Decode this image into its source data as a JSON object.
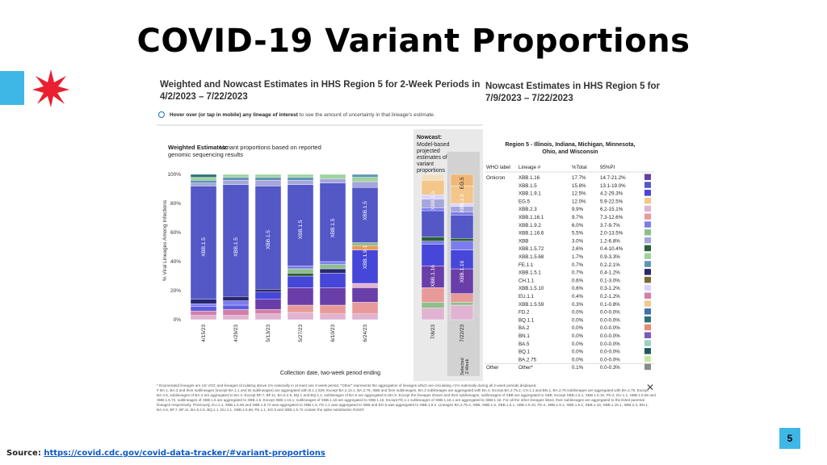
{
  "slide": {
    "title": "COVID-19 Variant Proportions",
    "left_heading": "Weighted and Nowcast Estimates in HHS Region 5 for 2-Week Periods in 4/2/2023 – 7/22/2023",
    "right_heading": "Nowcast Estimates in HHS Region 5 for 7/9/2023 – 7/22/2023",
    "hover_bold": "Hover over (or tap in mobile) any lineage of interest",
    "hover_rest": " to see the amount of uncertainty in that lineage's estimate.",
    "source_label": "Source: ",
    "source_link": "https://covid.cdc.gov/covid-data-tracker/#variant-proportions",
    "page_number": "5",
    "brand_colors": {
      "accent": "#3fb7e6",
      "star": "#e8202f"
    },
    "icons": {
      "star": "star-icon",
      "hover": "info-icon",
      "close": "close-icon"
    }
  },
  "chart_data": {
    "type": "bar",
    "stacked": true,
    "title": "Weighted Estimates:",
    "subtitle": "Variant proportions based on reported genomic sequencing results",
    "nowcast_title": "Nowcast:",
    "nowcast_subtitle": "Model-based projected estimates of variant proportions",
    "xlabel": "Collection date, two-week period ending",
    "ylabel": "% Viral Lineages Among Infections",
    "yticks": [
      "100%",
      "80%",
      "60%",
      "40%",
      "20%",
      "0%"
    ],
    "ylim": [
      0,
      100
    ],
    "grid": false,
    "selected_label": "Selected 2-Week",
    "bars": [
      {
        "date": "4/15/23",
        "group": "weighted",
        "label": "XBB.1.5",
        "label_y": 50,
        "segments": [
          {
            "value": 3,
            "color": "#e0b3d2"
          },
          {
            "value": 3,
            "color": "#d27fa8"
          },
          {
            "value": 3,
            "color": "#5c5ce0"
          },
          {
            "value": 2,
            "color": "#7c7cf0"
          },
          {
            "value": 3,
            "color": "#272870"
          },
          {
            "value": 78,
            "color": "#5457c6"
          },
          {
            "value": 2,
            "color": "#a6a6dc"
          },
          {
            "value": 2,
            "color": "#5e96b4"
          },
          {
            "value": 2,
            "color": "#9fd39c"
          },
          {
            "value": 2,
            "color": "#2c6f7a"
          }
        ]
      },
      {
        "date": "4/29/23",
        "group": "weighted",
        "label": "XBB.1.5",
        "label_y": 50,
        "segments": [
          {
            "value": 3,
            "color": "#e0b3d2"
          },
          {
            "value": 4,
            "color": "#d27fa8"
          },
          {
            "value": 3,
            "color": "#5c5ce0"
          },
          {
            "value": 3,
            "color": "#7c7cf0"
          },
          {
            "value": 3,
            "color": "#272870"
          },
          {
            "value": 77,
            "color": "#5457c6"
          },
          {
            "value": 3,
            "color": "#a6a6dc"
          },
          {
            "value": 2,
            "color": "#5e96b4"
          },
          {
            "value": 2,
            "color": "#9fd39c"
          }
        ]
      },
      {
        "date": "5/13/23",
        "group": "weighted",
        "label": "XBB.1.5",
        "label_y": 55,
        "segments": [
          {
            "value": 4,
            "color": "#e0b3d2"
          },
          {
            "value": 3,
            "color": "#d27fa8"
          },
          {
            "value": 7,
            "color": "#6a3ea8"
          },
          {
            "value": 5,
            "color": "#4646d8"
          },
          {
            "value": 2,
            "color": "#272870"
          },
          {
            "value": 71,
            "color": "#5457c6"
          },
          {
            "value": 4,
            "color": "#a6a6dc"
          },
          {
            "value": 2,
            "color": "#5e96b4"
          },
          {
            "value": 2,
            "color": "#9fd39c"
          }
        ]
      },
      {
        "date": "5/27/23",
        "group": "weighted",
        "label": "XBB.1.5",
        "label_y": 62,
        "segments": [
          {
            "value": 5,
            "color": "#e0b3d2"
          },
          {
            "value": 5,
            "color": "#e89a9a"
          },
          {
            "value": 12,
            "color": "#6a3ea8"
          },
          {
            "value": 8,
            "color": "#4646d8"
          },
          {
            "value": 2,
            "color": "#2c5f3a"
          },
          {
            "value": 3,
            "color": "#8fbf8c"
          },
          {
            "value": 2,
            "color": "#7c7cf0"
          },
          {
            "value": 56,
            "color": "#5457c6"
          },
          {
            "value": 3,
            "color": "#a6a6dc"
          },
          {
            "value": 2,
            "color": "#5e96b4"
          },
          {
            "value": 2,
            "color": "#9fd39c"
          }
        ]
      },
      {
        "date": "6/10/23",
        "group": "weighted",
        "label": "XBB.1.5",
        "label_y": 63,
        "segments": [
          {
            "value": 4,
            "color": "#e0b3d2"
          },
          {
            "value": 6,
            "color": "#e89a9a"
          },
          {
            "value": 12,
            "color": "#6a3ea8"
          },
          {
            "value": 10,
            "color": "#4646d8"
          },
          {
            "value": 3,
            "color": "#272870"
          },
          {
            "value": 3,
            "color": "#8fbf8c"
          },
          {
            "value": 2,
            "color": "#7c7cf0"
          },
          {
            "value": 54,
            "color": "#5457c6"
          },
          {
            "value": 3,
            "color": "#a6a6dc"
          },
          {
            "value": 3,
            "color": "#9fd39c"
          }
        ]
      },
      {
        "date": "6/24/23",
        "group": "weighted",
        "label": "XBB.1.5",
        "label_y": 75,
        "label2": "XBB.1.9.1",
        "label2_y": 43,
        "segments": [
          {
            "value": 4,
            "color": "#e0b3d2"
          },
          {
            "value": 8,
            "color": "#e89a9a"
          },
          {
            "value": 10,
            "color": "#6a3ea8"
          },
          {
            "value": 3,
            "color": "#e0b3d2"
          },
          {
            "value": 23,
            "color": "#4646d8"
          },
          {
            "value": 3,
            "color": "#e89a5a"
          },
          {
            "value": 2,
            "color": "#8fbf8c"
          },
          {
            "value": 38,
            "color": "#5457c6"
          },
          {
            "value": 4,
            "color": "#a6a6dc"
          },
          {
            "value": 3,
            "color": "#9fd39c"
          },
          {
            "value": 2,
            "color": "#5e96b4"
          }
        ]
      },
      {
        "date": "7/8/23",
        "group": "nowcast",
        "label": "XBB.1.5",
        "label_y": 82,
        "label2": "XBB.1.16",
        "label2_y": 30,
        "segments": [
          {
            "value": 8,
            "color": "#e0b3d2"
          },
          {
            "value": 4,
            "color": "#8fbf8c"
          },
          {
            "value": 10,
            "color": "#e89a9a"
          },
          {
            "value": 15,
            "color": "#6a3ea8"
          },
          {
            "value": 15,
            "color": "#4646d8"
          },
          {
            "value": 2,
            "color": "#7c7cf0"
          },
          {
            "value": 3,
            "color": "#2c5f3a"
          },
          {
            "value": 18,
            "color": "#5457c6"
          },
          {
            "value": 2,
            "color": "#7c7cf0"
          },
          {
            "value": 6,
            "color": "#a6a6dc"
          },
          {
            "value": 3,
            "color": "#d8d4ff"
          },
          {
            "value": 10,
            "color": "#f4c68a"
          },
          {
            "value": 4,
            "color": "#f0e0c0"
          }
        ]
      },
      {
        "date": "7/22/23",
        "group": "nowcast",
        "label": "XBB.1.5",
        "label_y": 80,
        "label2": "XBB.1.16",
        "label2_y": 33,
        "label3": "EG.5",
        "label3_y": 94,
        "selected": true,
        "segments": [
          {
            "value": 10,
            "color": "#e0b3d2"
          },
          {
            "value": 2,
            "color": "#8fbf8c"
          },
          {
            "value": 6,
            "color": "#e89a9a"
          },
          {
            "value": 17,
            "color": "#6a3ea8"
          },
          {
            "value": 13,
            "color": "#4646d8"
          },
          {
            "value": 6,
            "color": "#7c7cf0"
          },
          {
            "value": 2,
            "color": "#2c5f3a"
          },
          {
            "value": 16,
            "color": "#5457c6"
          },
          {
            "value": 2,
            "color": "#7c7cf0"
          },
          {
            "value": 4,
            "color": "#a6a6dc"
          },
          {
            "value": 2,
            "color": "#d8d4ff"
          },
          {
            "value": 12,
            "color": "#f4c68a"
          },
          {
            "value": 8,
            "color": "#f0b878"
          }
        ]
      }
    ]
  },
  "table": {
    "region": "Region 5 - Illinois, Indiana, Michigan, Minnesota, Ohio, and Wisconsin",
    "headers": [
      "WHO label",
      "Lineage #",
      "%Total",
      "95%PI"
    ],
    "rows": [
      {
        "who": "Omicron",
        "lineage": "XBB.1.16",
        "total": "17.7%",
        "pi": "14.7-21.2%",
        "color": "#6a3ea8"
      },
      {
        "who": "",
        "lineage": "XBB.1.5",
        "total": "15.8%",
        "pi": "13.1-19.0%",
        "color": "#5457c6"
      },
      {
        "who": "",
        "lineage": "XBB.1.9.1",
        "total": "12.5%",
        "pi": "4.2-29.3%",
        "color": "#4646d8"
      },
      {
        "who": "",
        "lineage": "EG.5",
        "total": "12.0%",
        "pi": "5.9-22.5%",
        "color": "#f4c68a"
      },
      {
        "who": "",
        "lineage": "XBB.2.3",
        "total": "9.9%",
        "pi": "6.2-15.1%",
        "color": "#e0b3d2"
      },
      {
        "who": "",
        "lineage": "XBB.1.16.1",
        "total": "9.7%",
        "pi": "7.3-12.6%",
        "color": "#e89a9a"
      },
      {
        "who": "",
        "lineage": "XBB.1.9.2",
        "total": "6.0%",
        "pi": "3.7-9.7%",
        "color": "#7c7cf0"
      },
      {
        "who": "",
        "lineage": "XBB.1.16.6",
        "total": "5.5%",
        "pi": "2.0-13.5%",
        "color": "#8fbf8c"
      },
      {
        "who": "",
        "lineage": "XBB",
        "total": "3.0%",
        "pi": "1.2-6.8%",
        "color": "#a6a6dc"
      },
      {
        "who": "",
        "lineage": "XBB.1.5.72",
        "total": "2.6%",
        "pi": "0.4-10.4%",
        "color": "#2c5f3a"
      },
      {
        "who": "",
        "lineage": "XBB.1.5.68",
        "total": "1.7%",
        "pi": "0.9-3.3%",
        "color": "#9fd39c"
      },
      {
        "who": "",
        "lineage": "FE.1.1",
        "total": "0.7%",
        "pi": "0.2-2.1%",
        "color": "#5e96b4"
      },
      {
        "who": "",
        "lineage": "XBB.1.5.1",
        "total": "0.7%",
        "pi": "0.4-1.2%",
        "color": "#272870"
      },
      {
        "who": "",
        "lineage": "CH.1.1",
        "total": "0.6%",
        "pi": "0.1-3.0%",
        "color": "#7a6a30"
      },
      {
        "who": "",
        "lineage": "XBB.1.5.10",
        "total": "0.6%",
        "pi": "0.3-1.2%",
        "color": "#d8d4ff"
      },
      {
        "who": "",
        "lineage": "EU.1.1",
        "total": "0.4%",
        "pi": "0.2-1.2%",
        "color": "#d27fa8"
      },
      {
        "who": "",
        "lineage": "XBB.1.5.59",
        "total": "0.3%",
        "pi": "0.1-0.8%",
        "color": "#f0c890"
      },
      {
        "who": "",
        "lineage": "FD.2",
        "total": "0.0%",
        "pi": "0.0-0.0%",
        "color": "#3e6fb0"
      },
      {
        "who": "",
        "lineage": "BQ.1.1",
        "total": "0.0%",
        "pi": "0.0-0.0%",
        "color": "#2c6f7a"
      },
      {
        "who": "",
        "lineage": "BA.2",
        "total": "0.0%",
        "pi": "0.0-0.0%",
        "color": "#e88a70"
      },
      {
        "who": "",
        "lineage": "BN.1",
        "total": "0.0%",
        "pi": "0.0-0.0%",
        "color": "#7c58c0"
      },
      {
        "who": "",
        "lineage": "BA.5",
        "total": "0.0%",
        "pi": "0.0-0.0%",
        "color": "#9ccfc4"
      },
      {
        "who": "",
        "lineage": "BQ.1",
        "total": "0.0%",
        "pi": "0.0-0.0%",
        "color": "#1e5a5a"
      },
      {
        "who": "",
        "lineage": "BA.2.75",
        "total": "0.0%",
        "pi": "0.0-0.0%",
        "color": "#c8e6a0"
      },
      {
        "who": "Other",
        "lineage": "Other*",
        "total": "0.1%",
        "pi": "0.0-0.3%",
        "color": "#8a8a8a"
      }
    ]
  },
  "footnotes": [
    "* Enumerated lineages are US VOC and lineages circulating above 1% nationally in at least one 2-week period. \"Other\" represents the aggregation of lineages which are circulating <1% nationally during all 2-week periods displayed.",
    "# BA.1, BA.3 and their sublineages (except BA.1.1 and its sublineages) are aggregated with B.1.1.529. Except BA.2.12.1, BA.2.75, XBB and their sublineages, BA.2 sublineages are aggregated with BA.2. Except BA.2.75.2, CH.1.1 and BN.1, BA.2.75 sublineages are aggregated with BA.2.75. Except BA.4.6, sublineages of BA.4 are aggregated to BA.4. Except BF.7, BF.11, BA.5.2.6, BQ.1 and BQ.1.1, sublineages of BA.5 are aggregated to BA.5. Except the lineages shown and their sublineages, sublineages of XBB are aggregated to XBB. Except XBB.1.5.1, XBB.1.5.10, FD.2, EU.1.1, XBB.1.5.68 and XBB.1.5.72, sublineages of XBB.1.5 are aggregated to XBB.1.5. Except XBB.1.16.1, sublineages of XBB.1.16 are aggregated to XBB.1.16. Except FE.1.1 sublineages of XBB.1.18.1 are aggregated to XBB.1.18. For all the other lineages listed, their sublineages are aggregated to the listed parental lineages respectively. Previously, EU.1.1, XBB.1.5.68 and XBB.1.5.72 was aggregated to XBB.1.5, FE.1.1 was aggregated to XBB and EG.5 was aggregated to XBB.1.9.2. Lineages BA.2.75.2, XBB, XBB.1.5, XBB.1.5.1, XBB.1.5.10, FD.2, XBB.1.9.1, XBB.1.9.2, XBB.1.16, XBB.1.16.1, XBB.2.3, BN.1, BA.4.6, BF.7, BF.11, BA.5.2.6, BQ.1.1, EU.1.1, XBB.1.5.68, FE.1.1, EG.5 and XBB.1.5.72 contain the spike substitution R346T."
  ]
}
